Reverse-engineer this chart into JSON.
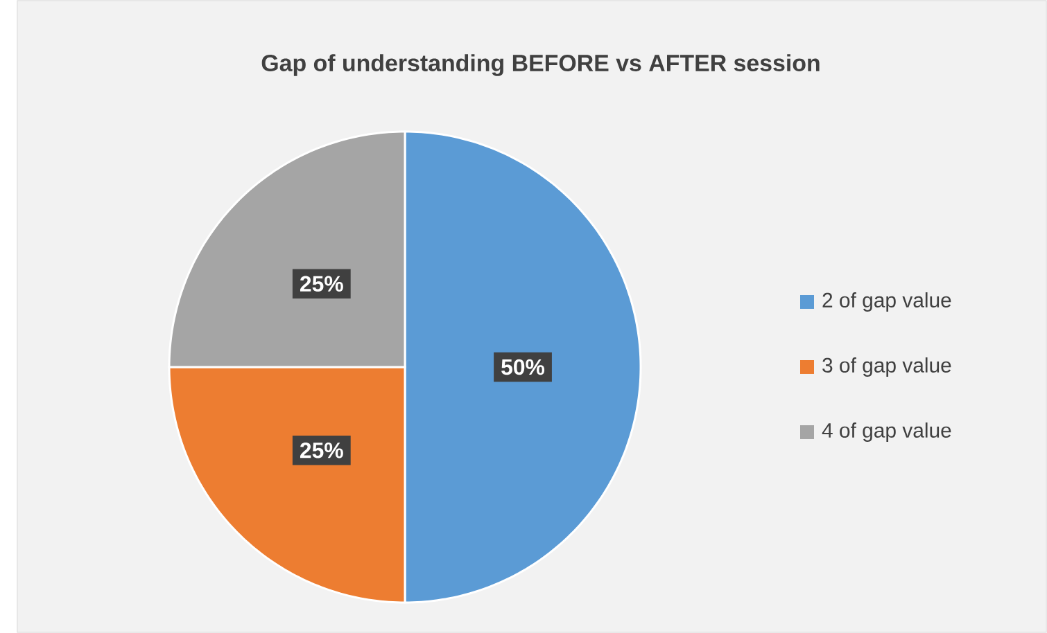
{
  "chart_data": {
    "type": "pie",
    "title": "Gap of understanding BEFORE vs AFTER session",
    "categories": [
      "2 of gap value",
      "3 of gap value",
      "4 of gap value"
    ],
    "values": [
      50,
      25,
      25
    ],
    "colors": [
      "#5b9bd5",
      "#ed7d31",
      "#a5a5a5"
    ],
    "value_labels": [
      "50%",
      "25%",
      "25%"
    ],
    "legend": "right"
  }
}
